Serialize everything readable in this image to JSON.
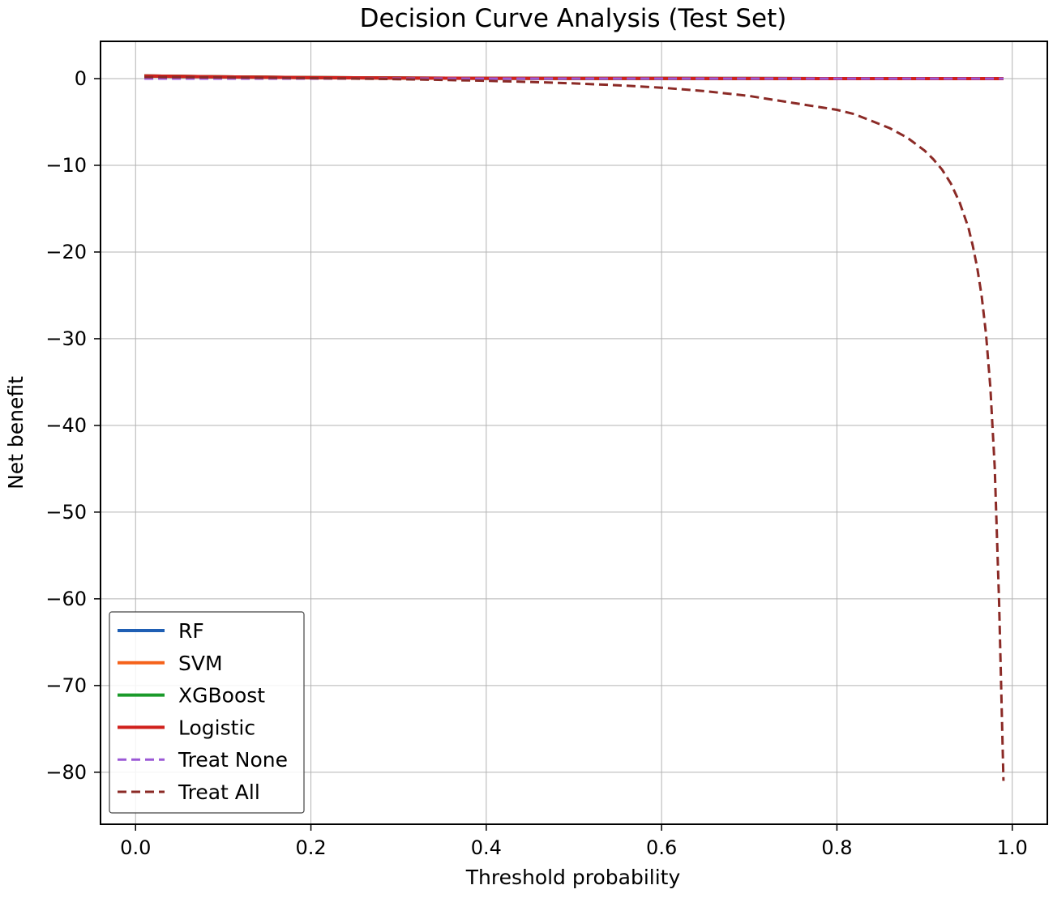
{
  "chart_data": {
    "type": "line",
    "title": "Decision Curve Analysis (Test Set)",
    "xlabel": "Threshold probability",
    "ylabel": "Net benefit",
    "xlim": [
      -0.04,
      1.04
    ],
    "ylim": [
      -86,
      4.3
    ],
    "xticks": [
      0.0,
      0.2,
      0.4,
      0.6,
      0.8,
      1.0
    ],
    "xtick_labels": [
      "0.0",
      "0.2",
      "0.4",
      "0.6",
      "0.8",
      "1.0"
    ],
    "yticks": [
      0,
      -10,
      -20,
      -30,
      -40,
      -50,
      -60,
      -70,
      -80
    ],
    "ytick_labels": [
      "0",
      "−10",
      "−20",
      "−30",
      "−40",
      "−50",
      "−60",
      "−70",
      "−80"
    ],
    "grid": true,
    "legend_position": "lower-left",
    "series": [
      {
        "name": "RF",
        "style": "solid",
        "color": "#1f5fb4",
        "x": [
          0.01,
          0.1,
          0.2,
          0.3,
          0.4,
          0.5,
          0.6,
          0.7,
          0.8,
          0.9,
          0.99
        ],
        "y": [
          0.3,
          0.2,
          0.12,
          0.07,
          0.04,
          0.03,
          0.02,
          0.01,
          0.0,
          0.0,
          0.0
        ]
      },
      {
        "name": "SVM",
        "style": "solid",
        "color": "#f5621a",
        "x": [
          0.01,
          0.1,
          0.2,
          0.3,
          0.4,
          0.5,
          0.6,
          0.7,
          0.8,
          0.9,
          0.99
        ],
        "y": [
          0.3,
          0.2,
          0.12,
          0.07,
          0.04,
          0.03,
          0.02,
          0.01,
          0.0,
          0.0,
          0.0
        ]
      },
      {
        "name": "XGBoost",
        "style": "solid",
        "color": "#1a9a2a",
        "x": [
          0.01,
          0.1,
          0.2,
          0.3,
          0.4,
          0.5,
          0.6,
          0.7,
          0.8,
          0.9,
          0.99
        ],
        "y": [
          0.3,
          0.2,
          0.12,
          0.07,
          0.04,
          0.03,
          0.02,
          0.01,
          0.0,
          0.0,
          0.0
        ]
      },
      {
        "name": "Logistic",
        "style": "solid",
        "color": "#d0201c",
        "x": [
          0.01,
          0.1,
          0.2,
          0.3,
          0.4,
          0.5,
          0.6,
          0.7,
          0.8,
          0.9,
          0.99
        ],
        "y": [
          0.3,
          0.2,
          0.12,
          0.07,
          0.04,
          0.03,
          0.02,
          0.01,
          0.0,
          0.0,
          0.0
        ]
      },
      {
        "name": "Treat None",
        "style": "dashed",
        "color": "#9b59d6",
        "x": [
          0.01,
          0.99
        ],
        "y": [
          0.0,
          0.0
        ]
      },
      {
        "name": "Treat All",
        "style": "dashed",
        "color": "#8b2a26",
        "x": [
          0.01,
          0.05,
          0.1,
          0.15,
          0.2,
          0.25,
          0.3,
          0.35,
          0.4,
          0.45,
          0.5,
          0.55,
          0.6,
          0.65,
          0.7,
          0.75,
          0.8,
          0.82,
          0.84,
          0.86,
          0.88,
          0.9,
          0.91,
          0.92,
          0.93,
          0.94,
          0.95,
          0.955,
          0.96,
          0.965,
          0.97,
          0.975,
          0.98,
          0.985,
          0.99
        ],
        "y": [
          0.18,
          0.16,
          0.13,
          0.09,
          0.05,
          0.0,
          -0.07,
          -0.15,
          -0.25,
          -0.38,
          -0.55,
          -0.77,
          -1.05,
          -1.45,
          -2.0,
          -2.8,
          -3.6,
          -4.1,
          -4.9,
          -5.7,
          -6.8,
          -8.3,
          -9.3,
          -10.5,
          -12.1,
          -14.3,
          -17.2,
          -19.3,
          -21.8,
          -25.0,
          -29.4,
          -35.6,
          -44.8,
          -60.4,
          -81.0
        ]
      }
    ]
  }
}
